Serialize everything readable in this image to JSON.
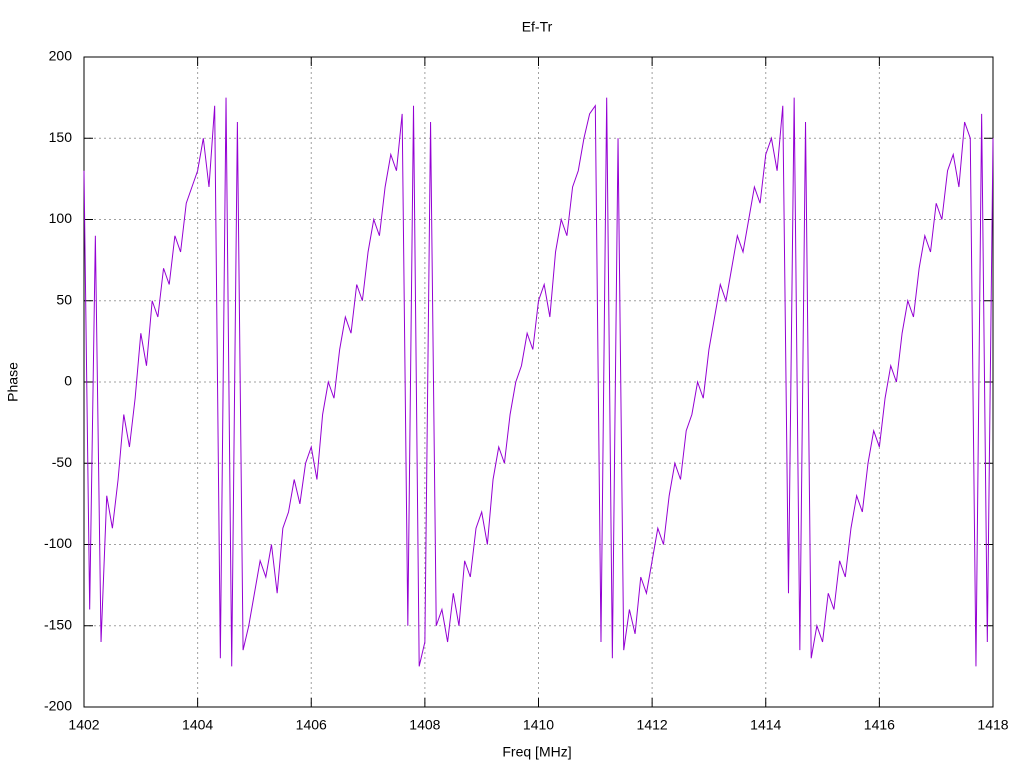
{
  "chart_data": {
    "type": "line",
    "title": "Ef-Tr",
    "x_label": "Freq [MHz]",
    "y_label": "Phase",
    "color": "#9400d3",
    "grid": true,
    "xlim": [
      1402,
      1418
    ],
    "ylim": [
      -200,
      200
    ],
    "xticks": [
      1402,
      1404,
      1406,
      1408,
      1410,
      1412,
      1414,
      1416,
      1418
    ],
    "yticks": [
      -200,
      -150,
      -100,
      -50,
      0,
      50,
      100,
      150,
      200
    ],
    "x": [
      1402,
      1402.1,
      1402.2,
      1402.3,
      1402.4,
      1402.5,
      1402.6,
      1402.7,
      1402.8,
      1402.9,
      1403,
      1403.1,
      1403.2,
      1403.3,
      1403.4,
      1403.5,
      1403.6,
      1403.7,
      1403.8,
      1403.9,
      1404,
      1404.1,
      1404.2,
      1404.3,
      1404.4,
      1404.5,
      1404.6,
      1404.7,
      1404.8,
      1404.9,
      1405,
      1405.1,
      1405.2,
      1405.3,
      1405.4,
      1405.5,
      1405.6,
      1405.7,
      1405.8,
      1405.9,
      1406,
      1406.1,
      1406.2,
      1406.3,
      1406.4,
      1406.5,
      1406.6,
      1406.7,
      1406.8,
      1406.9,
      1407,
      1407.1,
      1407.2,
      1407.3,
      1407.4,
      1407.5,
      1407.6,
      1407.7,
      1407.8,
      1407.9,
      1408,
      1408.1,
      1408.2,
      1408.3,
      1408.4,
      1408.5,
      1408.6,
      1408.7,
      1408.8,
      1408.9,
      1409,
      1409.1,
      1409.2,
      1409.3,
      1409.4,
      1409.5,
      1409.6,
      1409.7,
      1409.8,
      1409.9,
      1410,
      1410.1,
      1410.2,
      1410.3,
      1410.4,
      1410.5,
      1410.6,
      1410.7,
      1410.8,
      1410.9,
      1411,
      1411.1,
      1411.2,
      1411.3,
      1411.4,
      1411.5,
      1411.6,
      1411.7,
      1411.8,
      1411.9,
      1412,
      1412.1,
      1412.2,
      1412.3,
      1412.4,
      1412.5,
      1412.6,
      1412.7,
      1412.8,
      1412.9,
      1413,
      1413.1,
      1413.2,
      1413.3,
      1413.4,
      1413.5,
      1413.6,
      1413.7,
      1413.8,
      1413.9,
      1414,
      1414.1,
      1414.2,
      1414.3,
      1414.4,
      1414.5,
      1414.6,
      1414.7,
      1414.8,
      1414.9,
      1415,
      1415.1,
      1415.2,
      1415.3,
      1415.4,
      1415.5,
      1415.6,
      1415.7,
      1415.8,
      1415.9,
      1416,
      1416.1,
      1416.2,
      1416.3,
      1416.4,
      1416.5,
      1416.6,
      1416.7,
      1416.8,
      1416.9,
      1417,
      1417.1,
      1417.2,
      1417.3,
      1417.4,
      1417.5,
      1417.6,
      1417.7,
      1417.8,
      1417.9,
      1418
    ],
    "values": [
      130,
      -140,
      90,
      -160,
      -70,
      -90,
      -60,
      -20,
      -40,
      -10,
      30,
      10,
      50,
      40,
      70,
      60,
      90,
      80,
      110,
      120,
      130,
      150,
      120,
      170,
      -170,
      175,
      -175,
      160,
      -165,
      -150,
      -130,
      -110,
      -120,
      -100,
      -130,
      -90,
      -80,
      -60,
      -75,
      -50,
      -40,
      -60,
      -20,
      0,
      -10,
      20,
      40,
      30,
      60,
      50,
      80,
      100,
      90,
      120,
      140,
      130,
      165,
      -150,
      170,
      -175,
      -160,
      160,
      -150,
      -140,
      -160,
      -130,
      -150,
      -110,
      -120,
      -90,
      -80,
      -100,
      -60,
      -40,
      -50,
      -20,
      0,
      10,
      30,
      20,
      50,
      60,
      40,
      80,
      100,
      90,
      120,
      130,
      150,
      165,
      170,
      -160,
      175,
      -170,
      150,
      -165,
      -140,
      -155,
      -120,
      -130,
      -110,
      -90,
      -100,
      -70,
      -50,
      -60,
      -30,
      -20,
      0,
      -10,
      20,
      40,
      60,
      50,
      70,
      90,
      80,
      100,
      120,
      110,
      140,
      150,
      130,
      170,
      -130,
      175,
      -165,
      160,
      -170,
      -150,
      -160,
      -130,
      -140,
      -110,
      -120,
      -90,
      -70,
      -80,
      -50,
      -30,
      -40,
      -10,
      10,
      0,
      30,
      50,
      40,
      70,
      90,
      80,
      110,
      100,
      130,
      140,
      120,
      160,
      150,
      -175,
      165,
      -160,
      150
    ]
  }
}
